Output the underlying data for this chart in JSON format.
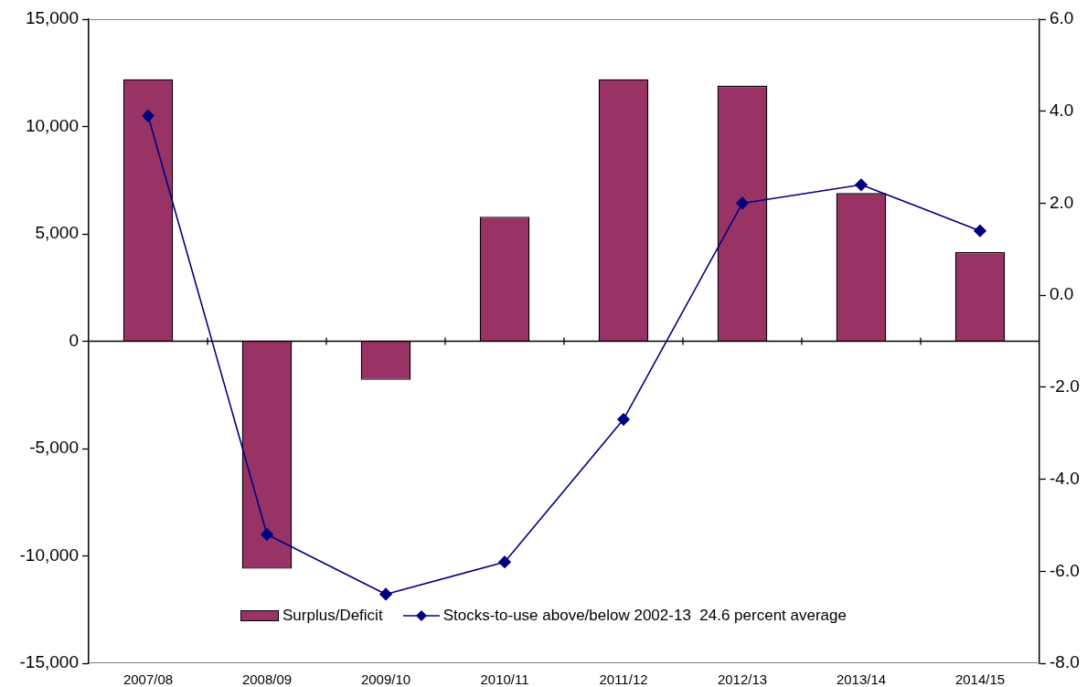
{
  "chart_data": {
    "type": "bar",
    "categories": [
      "2007/08",
      "2008/09",
      "2009/10",
      "2010/11",
      "2011/12",
      "2012/13",
      "2013/14",
      "2014/15"
    ],
    "series": [
      {
        "name": "Surplus/Deficit",
        "color": "#993366",
        "values": [
          12200,
          -10600,
          -1800,
          5800,
          12200,
          11900,
          6900,
          4150
        ]
      },
      {
        "name": "Stocks-to-use above/below 2002-13  24.6 percent average",
        "type": "line",
        "axis": "y2",
        "color": "#000080",
        "values": [
          3.9,
          -5.2,
          -6.5,
          -5.8,
          -2.7,
          2.0,
          2.4,
          1.4
        ]
      }
    ],
    "ylim": [
      -15000,
      15000
    ],
    "yticks": [
      {
        "value": -15000,
        "label": "-15,000"
      },
      {
        "value": -10000,
        "label": "-10,000"
      },
      {
        "value": -5000,
        "label": "-5,000"
      },
      0,
      {
        "value": 5000,
        "label": "5,000"
      },
      {
        "value": 10000,
        "label": "10,000"
      },
      {
        "value": 15000,
        "label": "15,000"
      }
    ],
    "y2lim": [
      -8,
      6
    ],
    "y2ticks": [
      {
        "value": -8,
        "label": "-8.0"
      },
      {
        "value": -6,
        "label": "-6.0"
      },
      {
        "value": -4,
        "label": "-4.0"
      },
      {
        "value": -2,
        "label": "-2.0"
      },
      {
        "value": 0,
        "label": "0.0"
      },
      {
        "value": 2,
        "label": "2.0"
      },
      {
        "value": 4,
        "label": "4.0"
      },
      {
        "value": 6,
        "label": "6.0"
      }
    ],
    "legend": "bottom",
    "marker": "diamond"
  }
}
